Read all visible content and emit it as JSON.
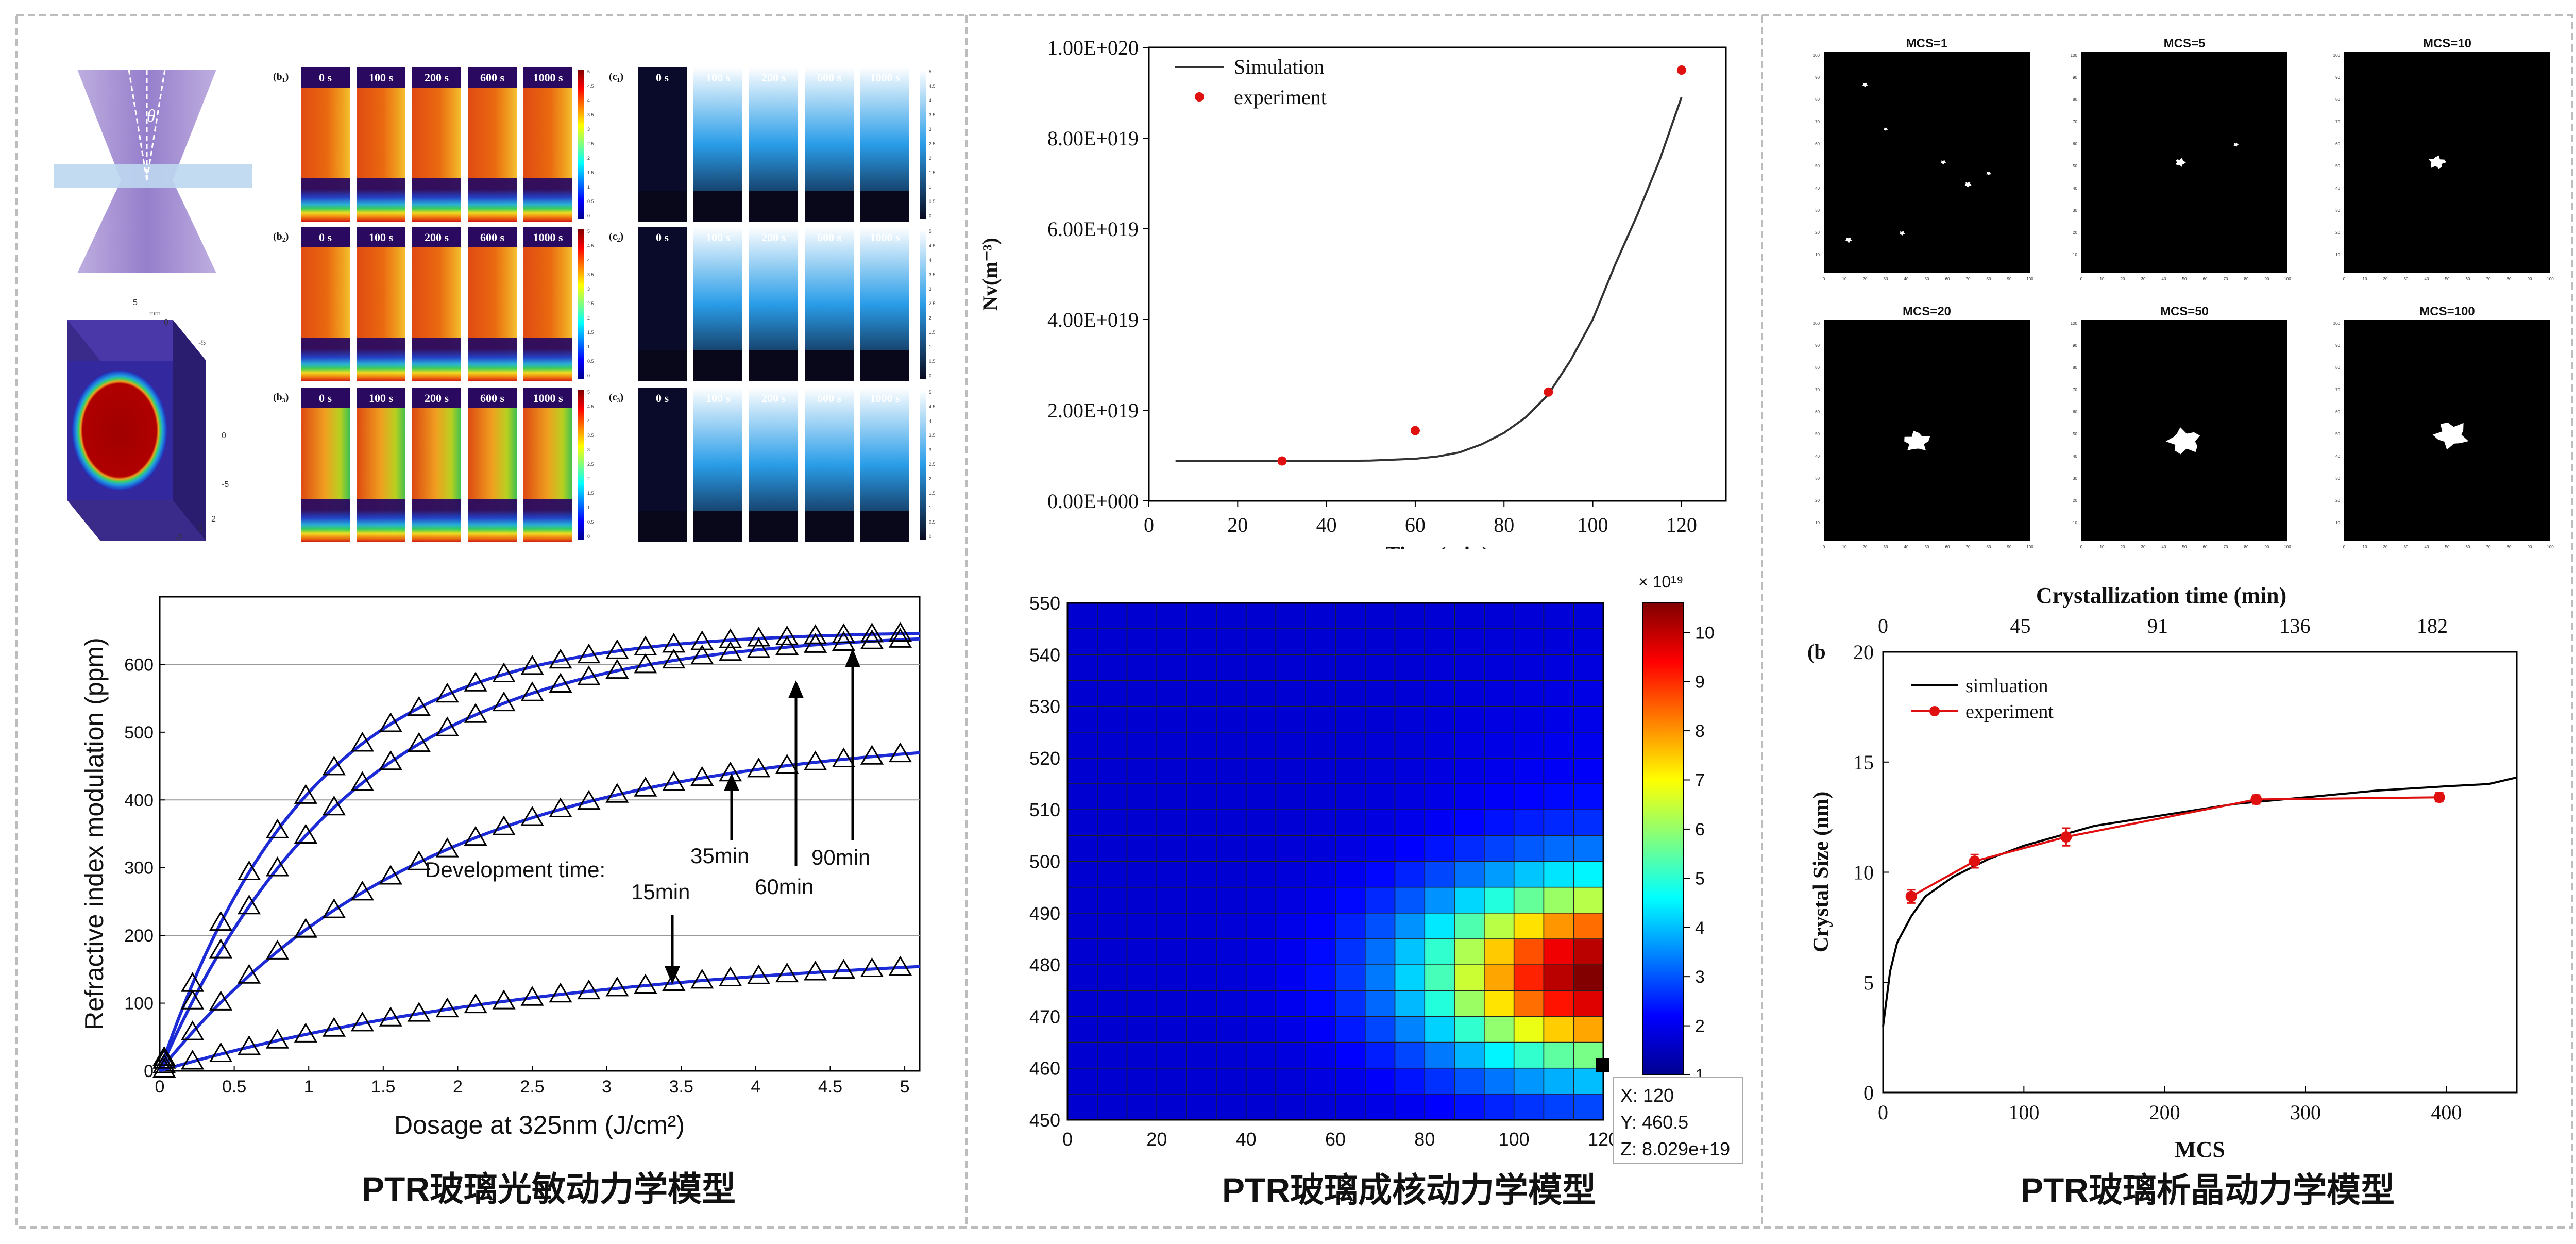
{
  "panels": [
    {
      "title": "PTR玻璃光敏动力学模型"
    },
    {
      "title": "PTR玻璃成核动力学模型"
    },
    {
      "title": "PTR玻璃析晶动力学模型"
    }
  ],
  "sim_labels": {
    "b": [
      "(b₁)",
      "(b₂)",
      "(b₃)"
    ],
    "c": [
      "(c₁)",
      "(c₂)",
      "(c₃)"
    ],
    "times": [
      "0 s",
      "100 s",
      "200 s",
      "600 s",
      "1000 s"
    ],
    "scale_ticks": [
      "5",
      "4.5",
      "4",
      "3.5",
      "3",
      "2.5",
      "2",
      "1.5",
      "1",
      "0.5",
      "0"
    ],
    "angle": "θ",
    "axis_mm_top": [
      "5",
      "0",
      "-5"
    ],
    "axis_mm_right": [
      "0",
      "-5"
    ],
    "axis_mm_bottom": [
      "-2",
      "0",
      "2"
    ],
    "unit_mm": "mm"
  },
  "chart_data": [
    {
      "id": "refractive",
      "type": "scatter",
      "xlabel": "Dosage at 325nm (J/cm²)",
      "ylabel": "Refractive index modulation (ppm)",
      "xlim": [
        0,
        5.1
      ],
      "ylim": [
        0,
        700
      ],
      "xticks": [
        0,
        0.5,
        1,
        1.5,
        2,
        2.5,
        3,
        3.5,
        4,
        4.5,
        5
      ],
      "yticks": [
        0,
        100,
        200,
        300,
        400,
        500,
        600
      ],
      "hgrid": [
        200,
        400,
        600
      ],
      "series": [
        {
          "name": "15min",
          "amax": 185,
          "k": 0.35
        },
        {
          "name": "35min",
          "amax": 500,
          "k": 0.55
        },
        {
          "name": "60min",
          "amax": 650,
          "k": 0.78
        },
        {
          "name": "90min",
          "amax": 650,
          "k": 1.0
        }
      ],
      "annotations": {
        "title": "Development time:",
        "labels": [
          "15min",
          "35min",
          "60min",
          "90min"
        ]
      }
    },
    {
      "id": "nv",
      "type": "line",
      "xlabel": "Time (min)",
      "ylabel": "Nv(m⁻³)",
      "xlim": [
        0,
        130
      ],
      "ylim": [
        0,
        1e+20
      ],
      "xticks": [
        0,
        20,
        40,
        60,
        80,
        100,
        120
      ],
      "ytick_labels": [
        "0.00E+000",
        "2.00E+019",
        "4.00E+019",
        "6.00E+019",
        "8.00E+019",
        "1.00E+020"
      ],
      "legend": [
        "Simulation",
        "experiment"
      ],
      "simulation": {
        "x": [
          6,
          20,
          30,
          40,
          50,
          60,
          65,
          70,
          75,
          80,
          85,
          90,
          95,
          100,
          105,
          110,
          115,
          120
        ],
        "y": [
          8.8e+18,
          8.8e+18,
          8.8e+18,
          8.8e+18,
          8.9e+18,
          9.3e+18,
          9.8e+18,
          1.07e+19,
          1.25e+19,
          1.5e+19,
          1.85e+19,
          2.35e+19,
          3.1e+19,
          4e+19,
          5.2e+19,
          6.3e+19,
          7.5e+19,
          8.9e+19
        ]
      },
      "experiment": {
        "x": [
          30,
          60,
          90,
          120
        ],
        "y": [
          8.8e+18,
          1.55e+19,
          2.4e+19,
          9.5e+19
        ]
      }
    },
    {
      "id": "heatmap",
      "type": "heatmap",
      "xlim": [
        0,
        120
      ],
      "ylim": [
        450,
        550
      ],
      "xticks": [
        0,
        20,
        40,
        60,
        80,
        100,
        120
      ],
      "yticks": [
        450,
        460,
        470,
        480,
        490,
        500,
        510,
        520,
        530,
        540,
        550
      ],
      "colorbar_exponent": "× 10¹⁹",
      "colorbar_ticks": [
        "1",
        "2",
        "3",
        "4",
        "5",
        "6",
        "7",
        "8",
        "9",
        "10"
      ],
      "zrange": [
        1,
        10.6
      ],
      "cursor": {
        "x": "X: 120",
        "y": "Y: 460.5",
        "z": "Z: 8.029e+19"
      }
    },
    {
      "id": "mcs",
      "type": "image-grid",
      "labels": [
        "MCS=1",
        "MCS=5",
        "MCS=10",
        "MCS=20",
        "MCS=50",
        "MCS=100"
      ],
      "y_ticks": [
        "100",
        "90",
        "80",
        "70",
        "60",
        "50",
        "40",
        "30",
        "20",
        "10"
      ],
      "x_ticks": [
        "0",
        "10",
        "20",
        "30",
        "40",
        "50",
        "60",
        "70",
        "80",
        "90",
        "100"
      ]
    },
    {
      "id": "crystal",
      "type": "line",
      "xlabel": "MCS",
      "ylabel": "Crystal Size (nm)",
      "top_xlabel": "Crystallization time (min)",
      "top_ticks": [
        "0",
        "45",
        "91",
        "136",
        "182"
      ],
      "panel_label": "(b)",
      "xlim": [
        0,
        450
      ],
      "ylim": [
        0,
        20
      ],
      "xticks": [
        0,
        100,
        200,
        300,
        400
      ],
      "yticks": [
        0,
        5,
        10,
        15,
        20
      ],
      "legend": [
        "simluation",
        "experiment"
      ],
      "simulation": {
        "x": [
          0,
          5,
          10,
          20,
          30,
          50,
          75,
          100,
          150,
          200,
          250,
          300,
          350,
          400,
          430,
          450
        ],
        "y": [
          3.0,
          5.5,
          6.8,
          8.0,
          8.9,
          9.8,
          10.6,
          11.2,
          12.1,
          12.6,
          13.1,
          13.4,
          13.7,
          13.9,
          14.0,
          14.3
        ]
      },
      "experiment": {
        "x": [
          20,
          65,
          130,
          265,
          395
        ],
        "y": [
          8.9,
          10.5,
          11.6,
          13.3,
          13.4
        ],
        "err": [
          0.3,
          0.3,
          0.4,
          0.2,
          0.2
        ]
      }
    }
  ],
  "colors": {
    "curve": "#1c2bd6",
    "experiment": "#e01010",
    "sim_line": "#333333",
    "border": "#bdbdbd"
  }
}
